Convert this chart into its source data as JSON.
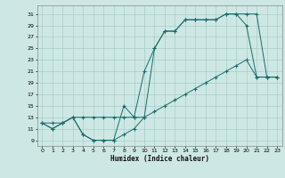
{
  "title": "",
  "xlabel": "Humidex (Indice chaleur)",
  "background_color": "#cde8e4",
  "grid_color": "#a8ccc8",
  "line_color": "#1a6b6b",
  "xlim": [
    -0.5,
    23.5
  ],
  "ylim": [
    8.0,
    32.5
  ],
  "xticks": [
    0,
    1,
    2,
    3,
    4,
    5,
    6,
    7,
    8,
    9,
    10,
    11,
    12,
    13,
    14,
    15,
    16,
    17,
    18,
    19,
    20,
    21,
    22,
    23
  ],
  "yticks": [
    9,
    11,
    13,
    15,
    17,
    19,
    21,
    23,
    25,
    27,
    29,
    31
  ],
  "curve1_x": [
    0,
    1,
    2,
    3,
    4,
    5,
    6,
    7,
    8,
    9,
    10,
    11,
    12,
    13,
    14,
    15,
    16,
    17,
    18,
    19,
    20,
    21,
    22,
    23
  ],
  "curve1_y": [
    12,
    11,
    12,
    13,
    10,
    9,
    9,
    9,
    10,
    11,
    13,
    25,
    28,
    28,
    30,
    30,
    30,
    30,
    31,
    31,
    29,
    20,
    20,
    20
  ],
  "curve2_x": [
    0,
    1,
    2,
    3,
    4,
    5,
    6,
    7,
    8,
    9,
    10,
    11,
    12,
    13,
    14,
    15,
    16,
    17,
    18,
    19,
    20,
    21,
    22,
    23
  ],
  "curve2_y": [
    12,
    11,
    12,
    13,
    10,
    9,
    9,
    9,
    15,
    13,
    21,
    25,
    28,
    28,
    30,
    30,
    30,
    30,
    31,
    31,
    31,
    31,
    20,
    20
  ],
  "curve3_x": [
    0,
    1,
    2,
    3,
    4,
    5,
    6,
    7,
    8,
    9,
    10,
    11,
    12,
    13,
    14,
    15,
    16,
    17,
    18,
    19,
    20,
    21,
    22,
    23
  ],
  "curve3_y": [
    12,
    12,
    12,
    13,
    13,
    13,
    13,
    13,
    13,
    13,
    13,
    14,
    15,
    16,
    17,
    18,
    19,
    20,
    21,
    22,
    23,
    20,
    20,
    20
  ]
}
